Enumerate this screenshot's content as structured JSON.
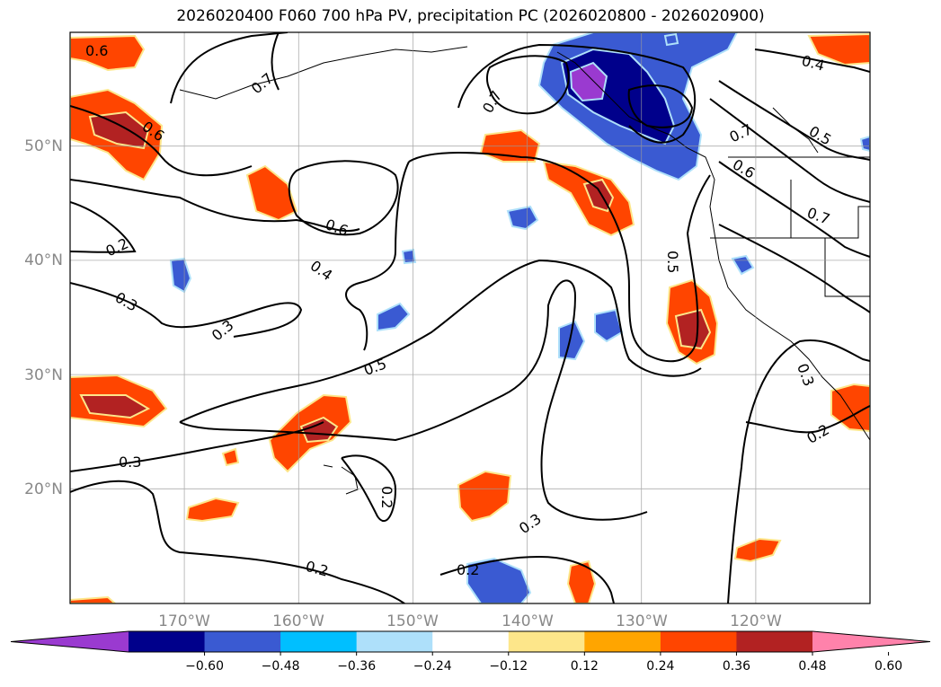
{
  "title": "2026020400 F060 700 hPa PV, precipitation PC (2026020800 - 2026020900)",
  "map": {
    "lon_range": [
      -180,
      -110
    ],
    "lat_range": [
      10,
      60
    ],
    "lat_ticks": [
      {
        "lat": 50,
        "label": "50°N"
      },
      {
        "lat": 40,
        "label": "40°N"
      },
      {
        "lat": 30,
        "label": "30°N"
      },
      {
        "lat": 20,
        "label": "20°N"
      }
    ],
    "lon_ticks": [
      {
        "lon": -170,
        "label": "170°W"
      },
      {
        "lon": -160,
        "label": "160°W"
      },
      {
        "lon": -150,
        "label": "150°W"
      },
      {
        "lon": -140,
        "label": "140°W"
      },
      {
        "lon": -130,
        "label": "130°W"
      },
      {
        "lon": -120,
        "label": "120°W"
      }
    ],
    "grid": true,
    "contour_labels": [
      "0.6",
      "0.7",
      "0.6",
      "0.6",
      "0.4",
      "0.2",
      "0.3",
      "0.3",
      "0.5",
      "0.3",
      "0.2",
      "0.3",
      "0.2",
      "0.2",
      "0.7",
      "0.5",
      "0.7",
      "0.6",
      "0.5",
      "0.7",
      "0.4",
      "0.3",
      "0.2"
    ]
  },
  "colorbar": {
    "colors": [
      "#9a3ad0",
      "#00008b",
      "#3a5ad2",
      "#00bfff",
      "#aee0fa",
      "#ffffff",
      "#fde68a",
      "#ffa500",
      "#ff4500",
      "#b22222",
      "#ff82ab"
    ],
    "tick_labels": [
      "−0.60",
      "−0.48",
      "−0.36",
      "−0.24",
      "−0.12",
      "0.12",
      "0.24",
      "0.36",
      "0.48",
      "0.60"
    ]
  }
}
